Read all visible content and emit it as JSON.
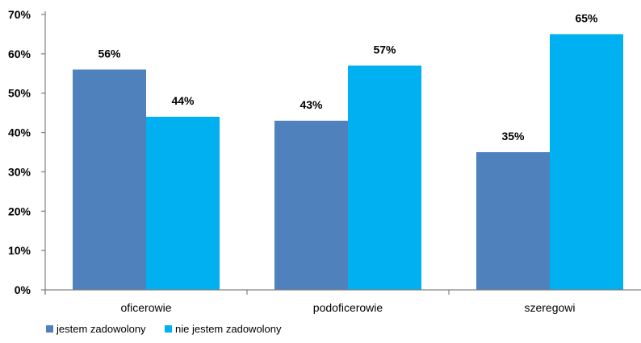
{
  "chart_data": {
    "type": "bar",
    "categories": [
      "oficerowie",
      "podoficerowie",
      "szeregowi"
    ],
    "series": [
      {
        "name": "jestem zadowolony",
        "values": [
          56,
          43,
          35
        ],
        "labels": [
          "56%",
          "43%",
          "35%"
        ],
        "color": "#4f81bd"
      },
      {
        "name": "nie jestem zadowolony",
        "values": [
          44,
          57,
          65
        ],
        "labels": [
          "44%",
          "57%",
          "65%"
        ],
        "color": "#00b0f0"
      }
    ],
    "ylim": [
      0,
      70
    ],
    "yticks": [
      0,
      10,
      20,
      30,
      40,
      50,
      60,
      70
    ],
    "ytick_labels": [
      "0%",
      "10%",
      "20%",
      "30%",
      "40%",
      "50%",
      "60%",
      "70%"
    ],
    "legend_position": "bottom-left",
    "grid": false,
    "title": "",
    "xlabel": "",
    "ylabel": ""
  }
}
